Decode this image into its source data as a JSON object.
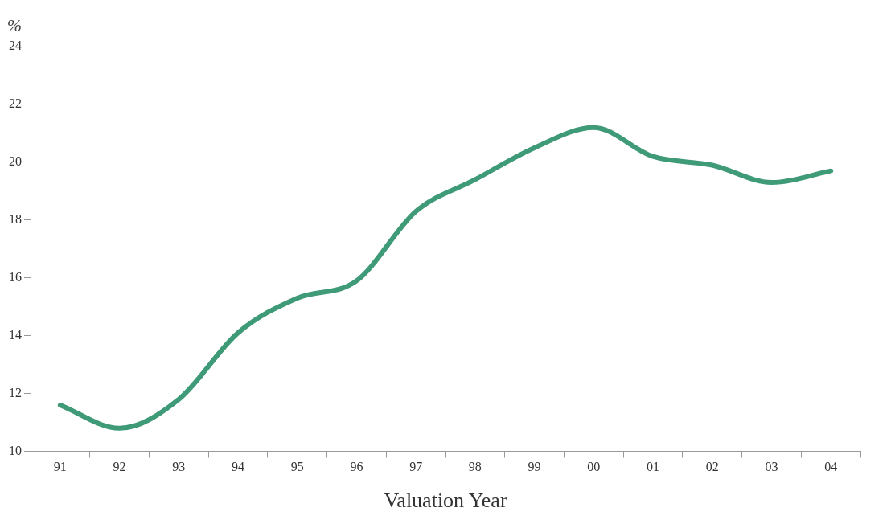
{
  "chart_data": {
    "type": "line",
    "xlabel": "Valuation Year",
    "ylabel": "%",
    "categories": [
      "91",
      "92",
      "93",
      "94",
      "95",
      "96",
      "97",
      "98",
      "99",
      "00",
      "01",
      "02",
      "03",
      "04"
    ],
    "series": [
      {
        "color": "#3f9a78",
        "values": [
          11.6,
          10.8,
          11.8,
          14.1,
          15.3,
          15.9,
          18.3,
          19.4,
          20.5,
          21.2,
          20.2,
          19.9,
          19.3,
          19.7
        ]
      }
    ],
    "ylim": [
      10,
      24
    ],
    "yticks": [
      10,
      12,
      14,
      16,
      18,
      20,
      22,
      24
    ],
    "grid": false,
    "legend": false,
    "marker": "none",
    "line_style": "solid"
  }
}
